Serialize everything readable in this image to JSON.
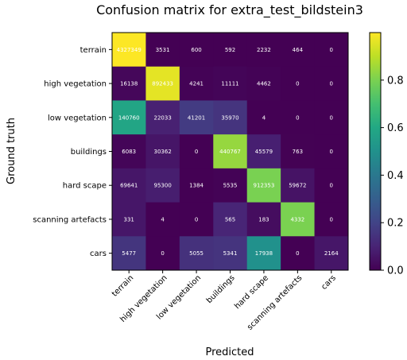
{
  "chart_data": {
    "type": "heatmap",
    "title": "Confusion matrix for extra_test_bildstein3",
    "xlabel": "Predicted",
    "ylabel": "Ground truth",
    "classes": [
      "terrain",
      "high vegetation",
      "low vegetation",
      "buildings",
      "hard scape",
      "scanning artefacts",
      "cars"
    ],
    "matrix": [
      [
        4327349,
        3531,
        600,
        592,
        2232,
        464,
        0
      ],
      [
        16138,
        892433,
        4241,
        11111,
        4462,
        0,
        0
      ],
      [
        140760,
        22033,
        41201,
        35970,
        4,
        0,
        0
      ],
      [
        6083,
        30362,
        0,
        440767,
        45579,
        763,
        0
      ],
      [
        69641,
        95300,
        1384,
        5535,
        912353,
        59672,
        0
      ],
      [
        331,
        4,
        0,
        565,
        183,
        4332,
        0
      ],
      [
        5477,
        0,
        5055,
        5341,
        17938,
        0,
        2164
      ]
    ],
    "normalization": "row",
    "colormap": "viridis",
    "colorbar": {
      "ticks": [
        0.0,
        0.2,
        0.4,
        0.6,
        0.8
      ],
      "tick_labels": [
        "0.0",
        "0.2",
        "0.4",
        "0.6",
        "0.8"
      ],
      "range": [
        0,
        1
      ]
    },
    "annotation_color": "#ffffff"
  }
}
